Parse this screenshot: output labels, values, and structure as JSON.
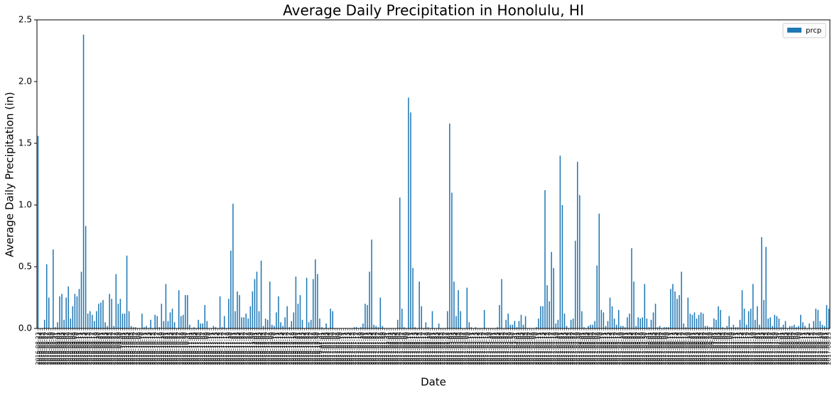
{
  "chart_data": {
    "type": "bar",
    "title": "Average Daily Precipitation in Honolulu, HI",
    "xlabel": "Date",
    "ylabel": "Average Daily Precipitation (in)",
    "legend": "upper right",
    "ylim": [
      0,
      2.5
    ],
    "yticks": [
      {
        "value": 0,
        "label": "0.0"
      },
      0.5,
      {
        "value": 1,
        "label": "1.0"
      },
      1.5,
      {
        "value": 2,
        "label": "2.0"
      },
      2.5
    ],
    "categories": [
      "2016-08-23",
      "2016-08-24",
      "2016-08-25",
      "2016-08-26",
      "2016-08-27",
      "2016-08-28",
      "2016-08-29",
      "2016-08-30",
      "2016-08-31",
      "2016-09-01",
      "2016-09-02",
      "2016-09-03",
      "2016-09-04",
      "2016-09-05",
      "2016-09-06",
      "2016-09-07",
      "2016-09-08",
      "2016-09-09",
      "2016-09-10",
      "2016-09-11",
      "2016-09-12",
      "2016-09-13",
      "2016-09-14",
      "2016-09-15",
      "2016-09-16",
      "2016-09-17",
      "2016-09-18",
      "2016-09-19",
      "2016-09-20",
      "2016-09-21",
      "2016-09-22",
      "2016-09-23",
      "2016-09-24",
      "2016-09-25",
      "2016-09-26",
      "2016-09-27",
      "2016-09-28",
      "2016-09-29",
      "2016-09-30",
      "2016-10-01",
      "2016-10-02",
      "2016-10-03",
      "2016-10-04",
      "2016-10-05",
      "2016-10-06",
      "2016-10-07",
      "2016-10-08",
      "2016-10-09",
      "2016-10-10",
      "2016-10-11",
      "2016-10-12",
      "2016-10-13",
      "2016-10-14",
      "2016-10-15",
      "2016-10-16",
      "2016-10-17",
      "2016-10-18",
      "2016-10-19",
      "2016-10-20",
      "2016-10-21",
      "2016-10-22",
      "2016-10-23",
      "2016-10-24",
      "2016-10-25",
      "2016-10-26",
      "2016-10-27",
      "2016-10-28",
      "2016-10-29",
      "2016-10-30",
      "2016-10-31",
      "2016-11-01",
      "2016-11-02",
      "2016-11-03",
      "2016-11-04",
      "2016-11-05",
      "2016-11-06",
      "2016-11-07",
      "2016-11-08",
      "2016-11-09",
      "2016-11-10",
      "2016-11-11",
      "2016-11-12",
      "2016-11-13",
      "2016-11-14",
      "2016-11-15",
      "2016-11-16",
      "2016-11-17",
      "2016-11-18",
      "2016-11-19",
      "2016-11-20",
      "2016-11-21",
      "2016-11-22",
      "2016-11-23",
      "2016-11-24",
      "2016-11-25",
      "2016-11-26",
      "2016-11-27",
      "2016-11-28",
      "2016-11-29",
      "2016-11-30",
      "2016-12-01",
      "2016-12-02",
      "2016-12-03",
      "2016-12-04",
      "2016-12-05",
      "2016-12-06",
      "2016-12-07",
      "2016-12-08",
      "2016-12-09",
      "2016-12-10",
      "2016-12-11",
      "2016-12-12",
      "2016-12-13",
      "2016-12-14",
      "2016-12-15",
      "2016-12-16",
      "2016-12-17",
      "2016-12-18",
      "2016-12-19",
      "2016-12-20",
      "2016-12-21",
      "2016-12-22",
      "2016-12-23",
      "2016-12-24",
      "2016-12-25",
      "2016-12-26",
      "2016-12-27",
      "2016-12-28",
      "2016-12-29",
      "2016-12-30",
      "2016-12-31",
      "2017-01-01",
      "2017-01-02",
      "2017-01-03",
      "2017-01-04",
      "2017-01-05",
      "2017-01-06",
      "2017-01-07",
      "2017-01-08",
      "2017-01-09",
      "2017-01-10",
      "2017-01-11",
      "2017-01-12",
      "2017-01-13",
      "2017-01-14",
      "2017-01-15",
      "2017-01-16",
      "2017-01-17",
      "2017-01-18",
      "2017-01-19",
      "2017-01-20",
      "2017-01-21",
      "2017-01-22",
      "2017-01-23",
      "2017-01-24",
      "2017-01-25",
      "2017-01-26",
      "2017-01-27",
      "2017-01-28",
      "2017-01-29",
      "2017-01-30",
      "2017-01-31",
      "2017-02-01",
      "2017-02-02",
      "2017-02-03",
      "2017-02-04",
      "2017-02-05",
      "2017-02-06",
      "2017-02-07",
      "2017-02-08",
      "2017-02-09",
      "2017-02-10",
      "2017-02-11",
      "2017-02-12",
      "2017-02-13",
      "2017-02-14",
      "2017-02-15",
      "2017-02-16",
      "2017-02-17",
      "2017-02-18",
      "2017-02-19",
      "2017-02-20",
      "2017-02-21",
      "2017-02-22",
      "2017-02-23",
      "2017-02-24",
      "2017-02-25",
      "2017-02-26",
      "2017-02-27",
      "2017-02-28",
      "2017-03-01",
      "2017-03-02",
      "2017-03-03",
      "2017-03-04",
      "2017-03-05",
      "2017-03-06",
      "2017-03-07",
      "2017-03-08",
      "2017-03-09",
      "2017-03-10",
      "2017-03-11",
      "2017-03-12",
      "2017-03-13",
      "2017-03-14",
      "2017-03-15",
      "2017-03-16",
      "2017-03-17",
      "2017-03-18",
      "2017-03-19",
      "2017-03-20",
      "2017-03-21",
      "2017-03-22",
      "2017-03-23",
      "2017-03-24",
      "2017-03-25",
      "2017-03-26",
      "2017-03-27",
      "2017-03-28",
      "2017-03-29",
      "2017-03-30",
      "2017-03-31",
      "2017-04-01",
      "2017-04-02",
      "2017-04-03",
      "2017-04-04",
      "2017-04-05",
      "2017-04-06",
      "2017-04-07",
      "2017-04-08",
      "2017-04-09",
      "2017-04-10",
      "2017-04-11",
      "2017-04-12",
      "2017-04-13",
      "2017-04-14",
      "2017-04-15",
      "2017-04-16",
      "2017-04-17",
      "2017-04-18",
      "2017-04-19",
      "2017-04-20",
      "2017-04-21",
      "2017-04-22",
      "2017-04-23",
      "2017-04-24",
      "2017-04-25",
      "2017-04-26",
      "2017-04-27",
      "2017-04-28",
      "2017-04-29",
      "2017-04-30",
      "2017-05-01",
      "2017-05-02",
      "2017-05-03",
      "2017-05-04",
      "2017-05-05",
      "2017-05-06",
      "2017-05-07",
      "2017-05-08",
      "2017-05-09",
      "2017-05-10",
      "2017-05-11",
      "2017-05-12",
      "2017-05-13",
      "2017-05-14",
      "2017-05-15",
      "2017-05-16",
      "2017-05-17",
      "2017-05-18",
      "2017-05-19",
      "2017-05-20",
      "2017-05-21",
      "2017-05-22",
      "2017-05-23",
      "2017-05-24",
      "2017-05-25",
      "2017-05-26",
      "2017-05-27",
      "2017-05-28",
      "2017-05-29",
      "2017-05-30",
      "2017-05-31",
      "2017-06-01",
      "2017-06-02",
      "2017-06-03",
      "2017-06-04",
      "2017-06-05",
      "2017-06-06",
      "2017-06-07",
      "2017-06-08",
      "2017-06-09",
      "2017-06-10",
      "2017-06-11",
      "2017-06-12",
      "2017-06-13",
      "2017-06-14",
      "2017-06-15",
      "2017-06-16",
      "2017-06-17",
      "2017-06-18",
      "2017-06-19",
      "2017-06-20",
      "2017-06-21",
      "2017-06-22",
      "2017-06-23",
      "2017-06-24",
      "2017-06-25",
      "2017-06-26",
      "2017-06-27",
      "2017-06-28",
      "2017-06-29",
      "2017-06-30",
      "2017-07-01",
      "2017-07-02",
      "2017-07-03",
      "2017-07-04",
      "2017-07-05",
      "2017-07-06",
      "2017-07-07",
      "2017-07-08",
      "2017-07-09",
      "2017-07-10",
      "2017-07-11",
      "2017-07-12",
      "2017-07-13",
      "2017-07-14",
      "2017-07-15",
      "2017-07-16",
      "2017-07-17",
      "2017-07-18",
      "2017-07-19",
      "2017-07-20",
      "2017-07-21",
      "2017-07-22",
      "2017-07-23",
      "2017-07-24",
      "2017-07-25",
      "2017-07-26",
      "2017-07-27",
      "2017-07-28",
      "2017-07-29",
      "2017-07-30",
      "2017-07-31",
      "2017-08-01",
      "2017-08-02",
      "2017-08-03",
      "2017-08-04",
      "2017-08-05",
      "2017-08-06",
      "2017-08-07",
      "2017-08-08",
      "2017-08-09",
      "2017-08-10",
      "2017-08-11",
      "2017-08-12",
      "2017-08-13",
      "2017-08-14",
      "2017-08-15",
      "2017-08-16",
      "2017-08-17",
      "2017-08-18",
      "2017-08-19",
      "2017-08-20",
      "2017-08-21",
      "2017-08-22",
      "2017-08-23"
    ],
    "series": [
      {
        "name": "prcp",
        "color": "#1f77b4",
        "values": [
          1.56,
          0.0,
          0.0,
          0.07,
          0.52,
          0.25,
          0.0,
          0.64,
          0.01,
          0.05,
          0.26,
          0.28,
          0.07,
          0.25,
          0.34,
          0.08,
          0.18,
          0.28,
          0.26,
          0.32,
          0.46,
          2.38,
          0.83,
          0.12,
          0.14,
          0.11,
          0.06,
          0.14,
          0.2,
          0.21,
          0.23,
          0.05,
          0.02,
          0.28,
          0.24,
          0.02,
          0.44,
          0.2,
          0.24,
          0.12,
          0.12,
          0.59,
          0.14,
          0.02,
          0.01,
          0.01,
          0.0,
          0.0,
          0.12,
          0.01,
          0.02,
          0.0,
          0.07,
          0.0,
          0.11,
          0.1,
          0.01,
          0.2,
          0.06,
          0.36,
          0.06,
          0.13,
          0.16,
          0.05,
          0.0,
          0.31,
          0.1,
          0.11,
          0.27,
          0.27,
          0.03,
          0.0,
          0.01,
          0.0,
          0.07,
          0.04,
          0.04,
          0.19,
          0.06,
          0.0,
          0.0,
          0.02,
          0.01,
          0.0,
          0.26,
          0.01,
          0.1,
          0.0,
          0.24,
          0.63,
          1.01,
          0.14,
          0.3,
          0.27,
          0.09,
          0.09,
          0.12,
          0.08,
          0.18,
          0.3,
          0.4,
          0.46,
          0.14,
          0.55,
          0.02,
          0.08,
          0.07,
          0.38,
          0.03,
          0.02,
          0.13,
          0.26,
          0.05,
          0.02,
          0.09,
          0.18,
          0.01,
          0.06,
          0.13,
          0.42,
          0.2,
          0.27,
          0.07,
          0.0,
          0.41,
          0.05,
          0.07,
          0.4,
          0.56,
          0.44,
          0.08,
          0.01,
          0.0,
          0.04,
          0.0,
          0.16,
          0.14,
          0.0,
          0.0,
          0.0,
          0.0,
          0.0,
          0.0,
          0.0,
          0.0,
          0.0,
          0.01,
          0.01,
          0.0,
          0.01,
          0.04,
          0.2,
          0.19,
          0.46,
          0.72,
          0.03,
          0.02,
          0.01,
          0.25,
          0.02,
          0.0,
          0.0,
          0.0,
          0.0,
          0.0,
          0.0,
          0.07,
          1.06,
          0.16,
          0.01,
          0.0,
          1.87,
          1.75,
          0.49,
          0.01,
          0.0,
          0.38,
          0.18,
          0.0,
          0.05,
          0.01,
          0.0,
          0.14,
          0.0,
          0.0,
          0.04,
          0.0,
          0.0,
          0.0,
          0.14,
          1.66,
          1.1,
          0.38,
          0.1,
          0.31,
          0.14,
          0.0,
          0.0,
          0.33,
          0.05,
          0.01,
          0.0,
          0.01,
          0.0,
          0.0,
          0.0,
          0.15,
          0.0,
          0.0,
          0.0,
          0.0,
          0.0,
          0.01,
          0.19,
          0.4,
          0.0,
          0.07,
          0.12,
          0.03,
          0.03,
          0.06,
          0.01,
          0.06,
          0.11,
          0.03,
          0.1,
          0.0,
          0.0,
          0.0,
          0.0,
          0.01,
          0.08,
          0.18,
          0.18,
          1.12,
          0.35,
          0.22,
          0.62,
          0.49,
          0.04,
          0.07,
          1.4,
          1.0,
          0.12,
          0.02,
          0.0,
          0.07,
          0.08,
          0.71,
          1.35,
          1.08,
          0.14,
          0.01,
          0.0,
          0.02,
          0.03,
          0.03,
          0.06,
          0.51,
          0.93,
          0.15,
          0.13,
          0.02,
          0.06,
          0.25,
          0.18,
          0.08,
          0.03,
          0.15,
          0.02,
          0.02,
          0.01,
          0.09,
          0.12,
          0.65,
          0.38,
          0.02,
          0.09,
          0.08,
          0.09,
          0.36,
          0.08,
          0.01,
          0.07,
          0.13,
          0.2,
          0.01,
          0.02,
          0.0,
          0.01,
          0.01,
          0.01,
          0.32,
          0.36,
          0.3,
          0.24,
          0.27,
          0.46,
          0.04,
          0.01,
          0.25,
          0.12,
          0.11,
          0.13,
          0.08,
          0.11,
          0.13,
          0.12,
          0.02,
          0.02,
          0.01,
          0.01,
          0.08,
          0.07,
          0.18,
          0.15,
          0.01,
          0.0,
          0.02,
          0.1,
          0.01,
          0.03,
          0.01,
          0.01,
          0.07,
          0.31,
          0.16,
          0.03,
          0.14,
          0.16,
          0.36,
          0.07,
          0.18,
          0.03,
          0.74,
          0.23,
          0.66,
          0.08,
          0.09,
          0.02,
          0.11,
          0.1,
          0.08,
          0.01,
          0.03,
          0.06,
          0.0,
          0.02,
          0.02,
          0.03,
          0.01,
          0.02,
          0.11,
          0.05,
          0.02,
          0.0,
          0.04,
          0.0,
          0.06,
          0.16,
          0.15,
          0.06,
          0.03,
          0.02,
          0.19,
          0.16
        ]
      }
    ]
  }
}
